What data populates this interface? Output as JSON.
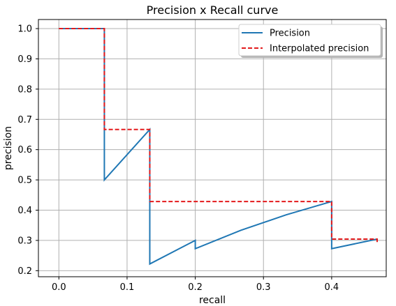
{
  "chart_data": {
    "type": "line",
    "title": "Precision x Recall curve",
    "xlabel": "recall",
    "ylabel": "precision",
    "xlim": [
      -0.03,
      0.48
    ],
    "ylim": [
      0.18,
      1.03
    ],
    "xticks": [
      0.0,
      0.1,
      0.2,
      0.3,
      0.4
    ],
    "xtick_labels": [
      "0.0",
      "0.1",
      "0.2",
      "0.3",
      "0.4"
    ],
    "yticks": [
      0.2,
      0.3,
      0.4,
      0.5,
      0.6,
      0.7,
      0.8,
      0.9,
      1.0
    ],
    "ytick_labels": [
      "0.2",
      "0.3",
      "0.4",
      "0.5",
      "0.6",
      "0.7",
      "0.8",
      "0.9",
      "1.0"
    ],
    "grid": true,
    "legend_position": "top-right",
    "series": [
      {
        "name": "Precision",
        "color": "#1f77b4",
        "style": "solid",
        "x": [
          0.0,
          0.0667,
          0.0667,
          0.1333,
          0.1333,
          0.2,
          0.2,
          0.2667,
          0.3333,
          0.4,
          0.4,
          0.4667
        ],
        "y": [
          1.0,
          1.0,
          0.5,
          0.6667,
          0.2222,
          0.3,
          0.2727,
          0.3333,
          0.3846,
          0.4286,
          0.2727,
          0.3043
        ]
      },
      {
        "name": "Interpolated precision",
        "color": "#e31a1c",
        "style": "dashed",
        "x": [
          0.0,
          0.0667,
          0.0667,
          0.1333,
          0.1333,
          0.4,
          0.4,
          0.4667,
          0.4667
        ],
        "y": [
          1.0,
          1.0,
          0.6667,
          0.6667,
          0.4286,
          0.4286,
          0.3043,
          0.3043,
          0.2917
        ]
      }
    ]
  }
}
